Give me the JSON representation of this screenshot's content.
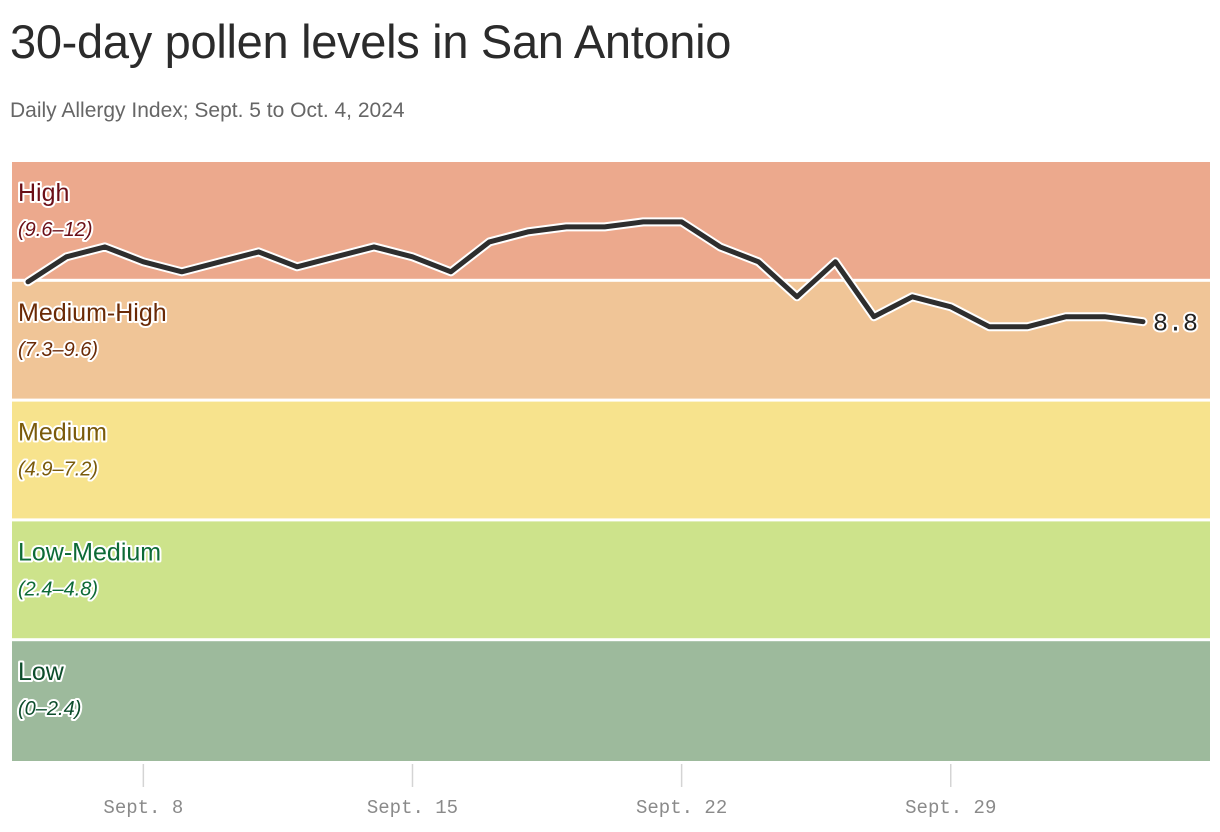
{
  "header": {
    "title": "30-day pollen levels in San Antonio",
    "subtitle": "Daily Allergy Index; Sept. 5 to Oct. 4, 2024"
  },
  "chart_data": {
    "type": "line",
    "ylim": [
      0,
      12
    ],
    "bands": [
      {
        "name": "High",
        "range": "(9.6–12)",
        "from": 9.6,
        "to": 12,
        "fill": "#eca98d",
        "text_color": "#6b0f17"
      },
      {
        "name": "Medium-High",
        "range": "(7.3–9.6)",
        "from": 7.2,
        "to": 9.6,
        "fill": "#f0c597",
        "text_color": "#6a2a06"
      },
      {
        "name": "Medium",
        "range": "(4.9–7.2)",
        "from": 4.8,
        "to": 7.2,
        "fill": "#f7e38d",
        "text_color": "#7a5a0b"
      },
      {
        "name": "Low-Medium",
        "range": "(2.4–4.8)",
        "from": 2.4,
        "to": 4.8,
        "fill": "#cde38b",
        "text_color": "#0d6a36"
      },
      {
        "name": "Low",
        "range": "(0–2.4)",
        "from": 0,
        "to": 2.4,
        "fill": "#9dba9c",
        "text_color": "#0d4d2b"
      }
    ],
    "xlim": [
      "2024-09-05",
      "2024-10-04"
    ],
    "x_ticks": [
      {
        "date": "2024-09-08",
        "label": "Sept. 8"
      },
      {
        "date": "2024-09-15",
        "label": "Sept. 15"
      },
      {
        "date": "2024-09-22",
        "label": "Sept. 22"
      },
      {
        "date": "2024-09-29",
        "label": "Sept. 29"
      }
    ],
    "series": [
      {
        "line_color": "#2e2e2e",
        "points": [
          {
            "date": "2024-09-05",
            "value": 9.6
          },
          {
            "date": "2024-09-06",
            "value": 10.1
          },
          {
            "date": "2024-09-07",
            "value": 10.3
          },
          {
            "date": "2024-09-08",
            "value": 10.0
          },
          {
            "date": "2024-09-09",
            "value": 9.8
          },
          {
            "date": "2024-09-10",
            "value": 10.0
          },
          {
            "date": "2024-09-11",
            "value": 10.2
          },
          {
            "date": "2024-09-12",
            "value": 9.9
          },
          {
            "date": "2024-09-13",
            "value": 10.1
          },
          {
            "date": "2024-09-14",
            "value": 10.3
          },
          {
            "date": "2024-09-15",
            "value": 10.1
          },
          {
            "date": "2024-09-16",
            "value": 9.8
          },
          {
            "date": "2024-09-17",
            "value": 10.4
          },
          {
            "date": "2024-09-18",
            "value": 10.6
          },
          {
            "date": "2024-09-19",
            "value": 10.7
          },
          {
            "date": "2024-09-20",
            "value": 10.7
          },
          {
            "date": "2024-09-21",
            "value": 10.8
          },
          {
            "date": "2024-09-22",
            "value": 10.8
          },
          {
            "date": "2024-09-23",
            "value": 10.3
          },
          {
            "date": "2024-09-24",
            "value": 10.0
          },
          {
            "date": "2024-09-25",
            "value": 9.3
          },
          {
            "date": "2024-09-26",
            "value": 10.0
          },
          {
            "date": "2024-09-27",
            "value": 8.9
          },
          {
            "date": "2024-09-28",
            "value": 9.3
          },
          {
            "date": "2024-09-29",
            "value": 9.1
          },
          {
            "date": "2024-09-30",
            "value": 8.7
          },
          {
            "date": "2024-10-01",
            "value": 8.7
          },
          {
            "date": "2024-10-02",
            "value": 8.9
          },
          {
            "date": "2024-10-03",
            "value": 8.9
          },
          {
            "date": "2024-10-04",
            "value": 8.8
          }
        ]
      }
    ],
    "last_value_label": "8.8"
  }
}
